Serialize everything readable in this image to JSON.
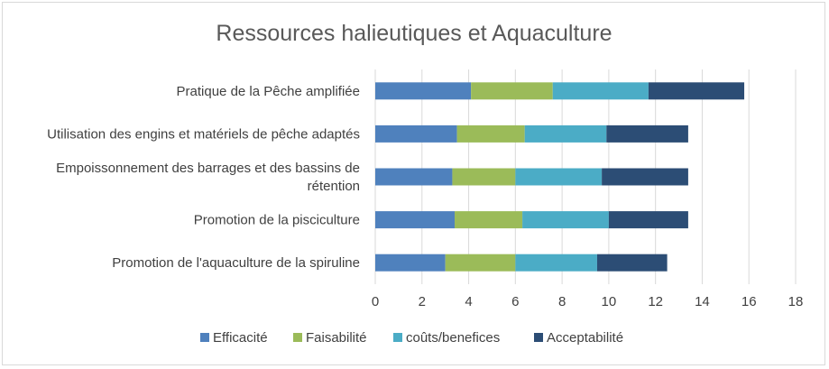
{
  "chart_data": {
    "type": "bar",
    "orientation": "horizontal",
    "stacked": true,
    "title": "Ressources halieutiques et Aquaculture",
    "categories": [
      [
        "Pratique de la Pêche amplifiée"
      ],
      [
        "Utilisation des engins et matériels de pêche adaptés"
      ],
      [
        "Empoissonnement des barrages et des bassins de",
        "rétention"
      ],
      [
        "Promotion de la pisciculture"
      ],
      [
        "Promotion de l'aquaculture de la spiruline"
      ]
    ],
    "series": [
      {
        "name": "Efficacité",
        "color": "#4f81bd",
        "values": [
          4.1,
          3.5,
          3.3,
          3.4,
          3.0
        ]
      },
      {
        "name": "Faisabilité",
        "color": "#9bbb59",
        "values": [
          3.5,
          2.9,
          2.7,
          2.9,
          3.0
        ]
      },
      {
        "name": "coûts/benefices",
        "color": "#4bacc6",
        "values": [
          4.1,
          3.5,
          3.7,
          3.7,
          3.5
        ]
      },
      {
        "name": "Acceptabilité",
        "color": "#2c4d75",
        "values": [
          4.1,
          3.5,
          3.7,
          3.4,
          3.0
        ]
      }
    ],
    "xlim": [
      0,
      18
    ],
    "xticks": [
      "0",
      "2",
      "4",
      "6",
      "8",
      "10",
      "12",
      "14",
      "16",
      "18"
    ],
    "grid": true,
    "legend_position": "bottom"
  }
}
